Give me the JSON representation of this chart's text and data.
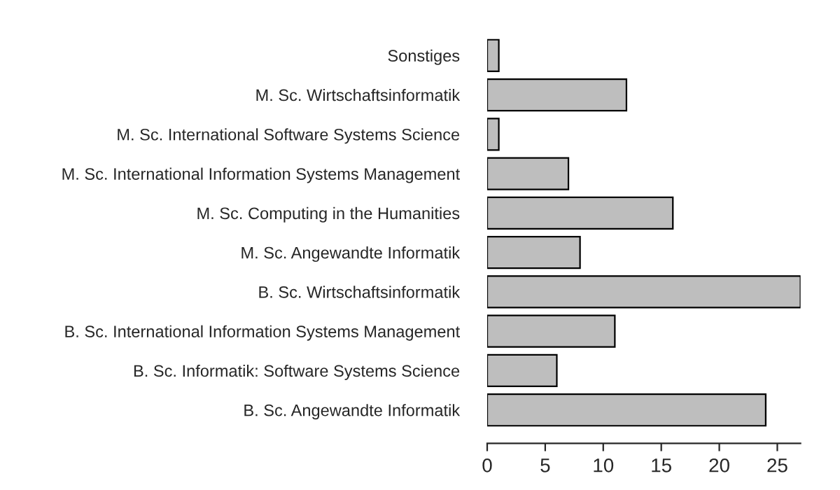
{
  "chart_data": {
    "type": "bar",
    "orientation": "horizontal",
    "categories": [
      "Sonstiges",
      "M. Sc. Wirtschaftsinformatik",
      "M. Sc. International Software Systems Science",
      "M. Sc. International Information Systems Management",
      "M. Sc. Computing in the Humanities",
      "M. Sc. Angewandte Informatik",
      "B. Sc. Wirtschaftsinformatik",
      "B. Sc. International Information Systems Management",
      "B. Sc. Informatik: Software Systems Science",
      "B. Sc. Angewandte Informatik"
    ],
    "values": [
      1,
      12,
      1,
      7,
      16,
      8,
      27,
      11,
      6,
      24
    ],
    "color": "#bebebe",
    "xlim": [
      0,
      27
    ],
    "xticks": [
      0,
      5,
      10,
      15,
      20,
      25
    ],
    "grid": false,
    "legend": false
  }
}
